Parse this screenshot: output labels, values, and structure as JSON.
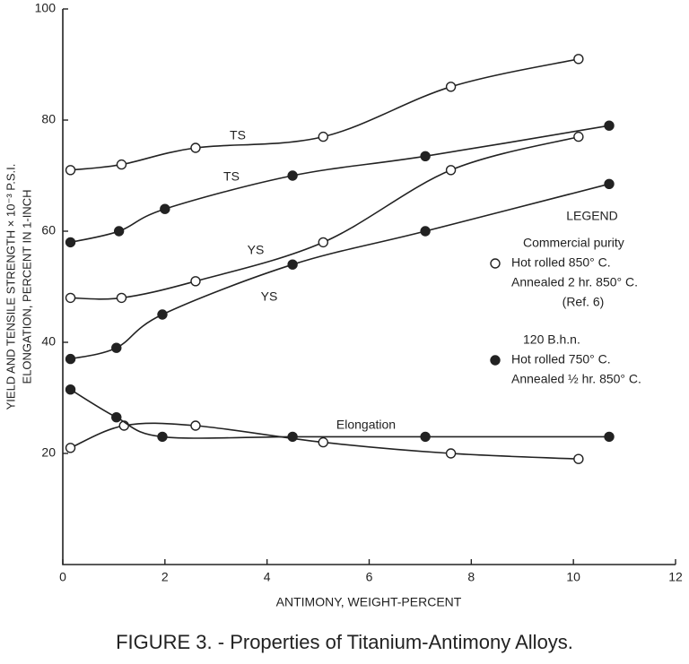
{
  "chart_data": {
    "type": "scatter",
    "caption": "FIGURE 3. - Properties of Titanium-Antimony Alloys.",
    "x_label": "ANTIMONY, WEIGHT-PERCENT",
    "y_label": [
      "YIELD AND TENSILE STRENGTH × 10⁻³ P.S.I.",
      "ELONGATION, PERCENT IN 1-INCH"
    ],
    "xlim": [
      0,
      12
    ],
    "xticks": [
      0,
      2,
      4,
      6,
      8,
      10,
      12
    ],
    "ylim": [
      0,
      100
    ],
    "yticks": [
      20,
      40,
      60,
      80,
      100
    ],
    "color": "#222222",
    "series": [
      {
        "name": "TS",
        "marker": "open",
        "x": [
          0.15,
          1.15,
          2.6,
          5.1,
          7.6,
          10.1
        ],
        "values": [
          71,
          72,
          75,
          77,
          86,
          91
        ]
      },
      {
        "name": "TS",
        "marker": "filled",
        "x": [
          0.15,
          1.1,
          2.0,
          4.5,
          7.1,
          10.7
        ],
        "values": [
          58,
          60,
          64,
          70,
          73.5,
          79
        ]
      },
      {
        "name": "YS",
        "marker": "open",
        "x": [
          0.15,
          1.15,
          2.6,
          5.1,
          7.6,
          10.1
        ],
        "values": [
          48,
          48,
          51,
          58,
          71,
          77
        ]
      },
      {
        "name": "YS",
        "marker": "filled",
        "x": [
          0.15,
          1.05,
          1.95,
          4.5,
          7.1,
          10.7
        ],
        "values": [
          37,
          39,
          45,
          54,
          60,
          68.5
        ]
      },
      {
        "name": "Elongation",
        "marker": "open",
        "x": [
          0.15,
          1.2,
          2.6,
          5.1,
          7.6,
          10.1
        ],
        "values": [
          21,
          25,
          25,
          22,
          20,
          19
        ]
      },
      {
        "marker": "filled",
        "x": [
          0.15,
          1.05,
          1.95,
          4.5,
          7.1,
          10.7
        ],
        "values": [
          31.5,
          26.5,
          23,
          23,
          23,
          23
        ]
      }
    ],
    "legend": {
      "title": "LEGEND",
      "entries": [
        {
          "marker": "open",
          "lines": [
            "Commercial purity",
            "Hot rolled 850° C.",
            "Annealed 2 hr. 850° C.",
            "(Ref. 6)"
          ]
        },
        {
          "marker": "filled",
          "lines": [
            "120 B.h.n.",
            "Hot rolled 750° C.",
            "Annealed ½ hr. 850° C."
          ]
        }
      ]
    }
  }
}
